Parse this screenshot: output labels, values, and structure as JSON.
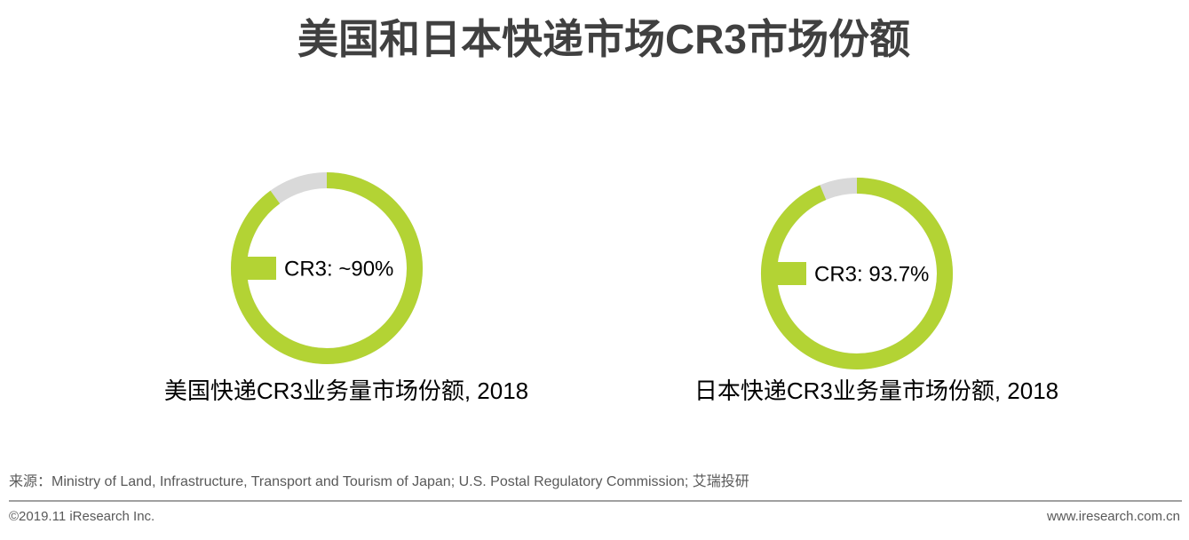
{
  "header": {
    "title": "美国和日本快递市场CR3市场份额"
  },
  "chart_data": [
    {
      "type": "pie",
      "title": "美国快递CR3业务量市场份额, 2018",
      "values": [
        90
      ],
      "value_labels": [
        "CR3: ~90%"
      ],
      "ylim": [
        0,
        100
      ],
      "color": "#b3d334",
      "track_color": "#d9d9d9"
    },
    {
      "type": "pie",
      "title": "日本快递CR3业务量市场份额, 2018",
      "values": [
        93.7
      ],
      "value_labels": [
        "CR3: 93.7%"
      ],
      "ylim": [
        0,
        100
      ],
      "color": "#b3d334",
      "track_color": "#d9d9d9"
    }
  ],
  "footer": {
    "source": "来源：Ministry of Land, Infrastructure, Transport and Tourism of Japan; U.S. Postal Regulatory Commission; 艾瑞投研",
    "copyright": "©2019.11 iResearch Inc.",
    "website": "www.iresearch.com.cn"
  }
}
